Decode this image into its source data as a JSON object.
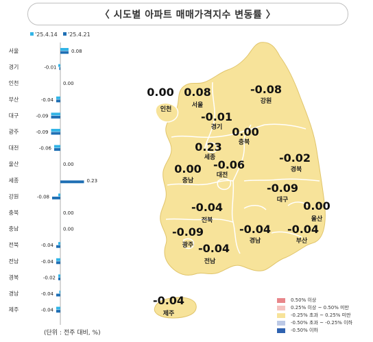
{
  "title": "〈  시도별 아파트 매매가격지수 변동률  〉",
  "unit_note": "(단위 : 전주 대비, %)",
  "colors": {
    "prev_week": "#32b4e6",
    "this_week": "#1f6fb4",
    "map_fill": "#f7e39a",
    "map_stroke": "#ffffff"
  },
  "chart_data": {
    "type": "bar",
    "orientation": "horizontal",
    "categories": [
      "서울",
      "경기",
      "인천",
      "부산",
      "대구",
      "광주",
      "대전",
      "울산",
      "세종",
      "강원",
      "충북",
      "충남",
      "전북",
      "전남",
      "경북",
      "경남",
      "제주"
    ],
    "series": [
      {
        "name": "'25.4.14",
        "values": [
          0.08,
          -0.02,
          0.0,
          -0.04,
          -0.09,
          -0.09,
          -0.06,
          0.0,
          0.0,
          -0.02,
          0.0,
          0.0,
          -0.02,
          -0.04,
          -0.02,
          -0.01,
          -0.04
        ]
      },
      {
        "name": "'25.4.21",
        "values": [
          0.08,
          -0.01,
          0.0,
          -0.04,
          -0.09,
          -0.09,
          -0.06,
          0.0,
          0.23,
          -0.08,
          0.0,
          0.0,
          -0.04,
          -0.04,
          -0.02,
          -0.04,
          -0.04
        ]
      }
    ],
    "value_labels": [
      "0.08",
      "-0.01",
      "0.00",
      "-0.04",
      "-0.09",
      "-0.09",
      "-0.06",
      "0.00",
      "0.23",
      "-0.08",
      "0.00",
      "0.00",
      "-0.04",
      "-0.04",
      "-0.02",
      "-0.04",
      "-0.04"
    ],
    "legend": [
      "'25.4.14",
      "'25.4.21"
    ],
    "legend_position": "top"
  },
  "map": {
    "regions": [
      {
        "name": "인천",
        "value": "0.00"
      },
      {
        "name": "서울",
        "value": "0.08"
      },
      {
        "name": "경기",
        "value": "-0.01"
      },
      {
        "name": "강원",
        "value": "-0.08"
      },
      {
        "name": "충북",
        "value": "0.00"
      },
      {
        "name": "세종",
        "value": "0.23"
      },
      {
        "name": "대전",
        "value": "-0.06"
      },
      {
        "name": "충남",
        "value": "0.00"
      },
      {
        "name": "경북",
        "value": "-0.02"
      },
      {
        "name": "대구",
        "value": "-0.09"
      },
      {
        "name": "울산",
        "value": "0.00"
      },
      {
        "name": "전북",
        "value": "-0.04"
      },
      {
        "name": "경남",
        "value": "-0.04"
      },
      {
        "name": "부산",
        "value": "-0.04"
      },
      {
        "name": "광주",
        "value": "-0.09"
      },
      {
        "name": "전남",
        "value": "-0.04"
      },
      {
        "name": "제주",
        "value": "-0.04"
      }
    ],
    "legend": [
      {
        "label": "0.50% 이상",
        "color": "#e8868a"
      },
      {
        "label": "0.25% 이상 ~ 0.50% 미만",
        "color": "#f5c3c0"
      },
      {
        "label": "-0.25% 초과 ~ 0.25% 미만",
        "color": "#f7e39a"
      },
      {
        "label": "-0.50% 초과 ~ -0.25% 이하",
        "color": "#bcc9e6"
      },
      {
        "label": "-0.50% 이하",
        "color": "#2f62b0"
      }
    ]
  }
}
